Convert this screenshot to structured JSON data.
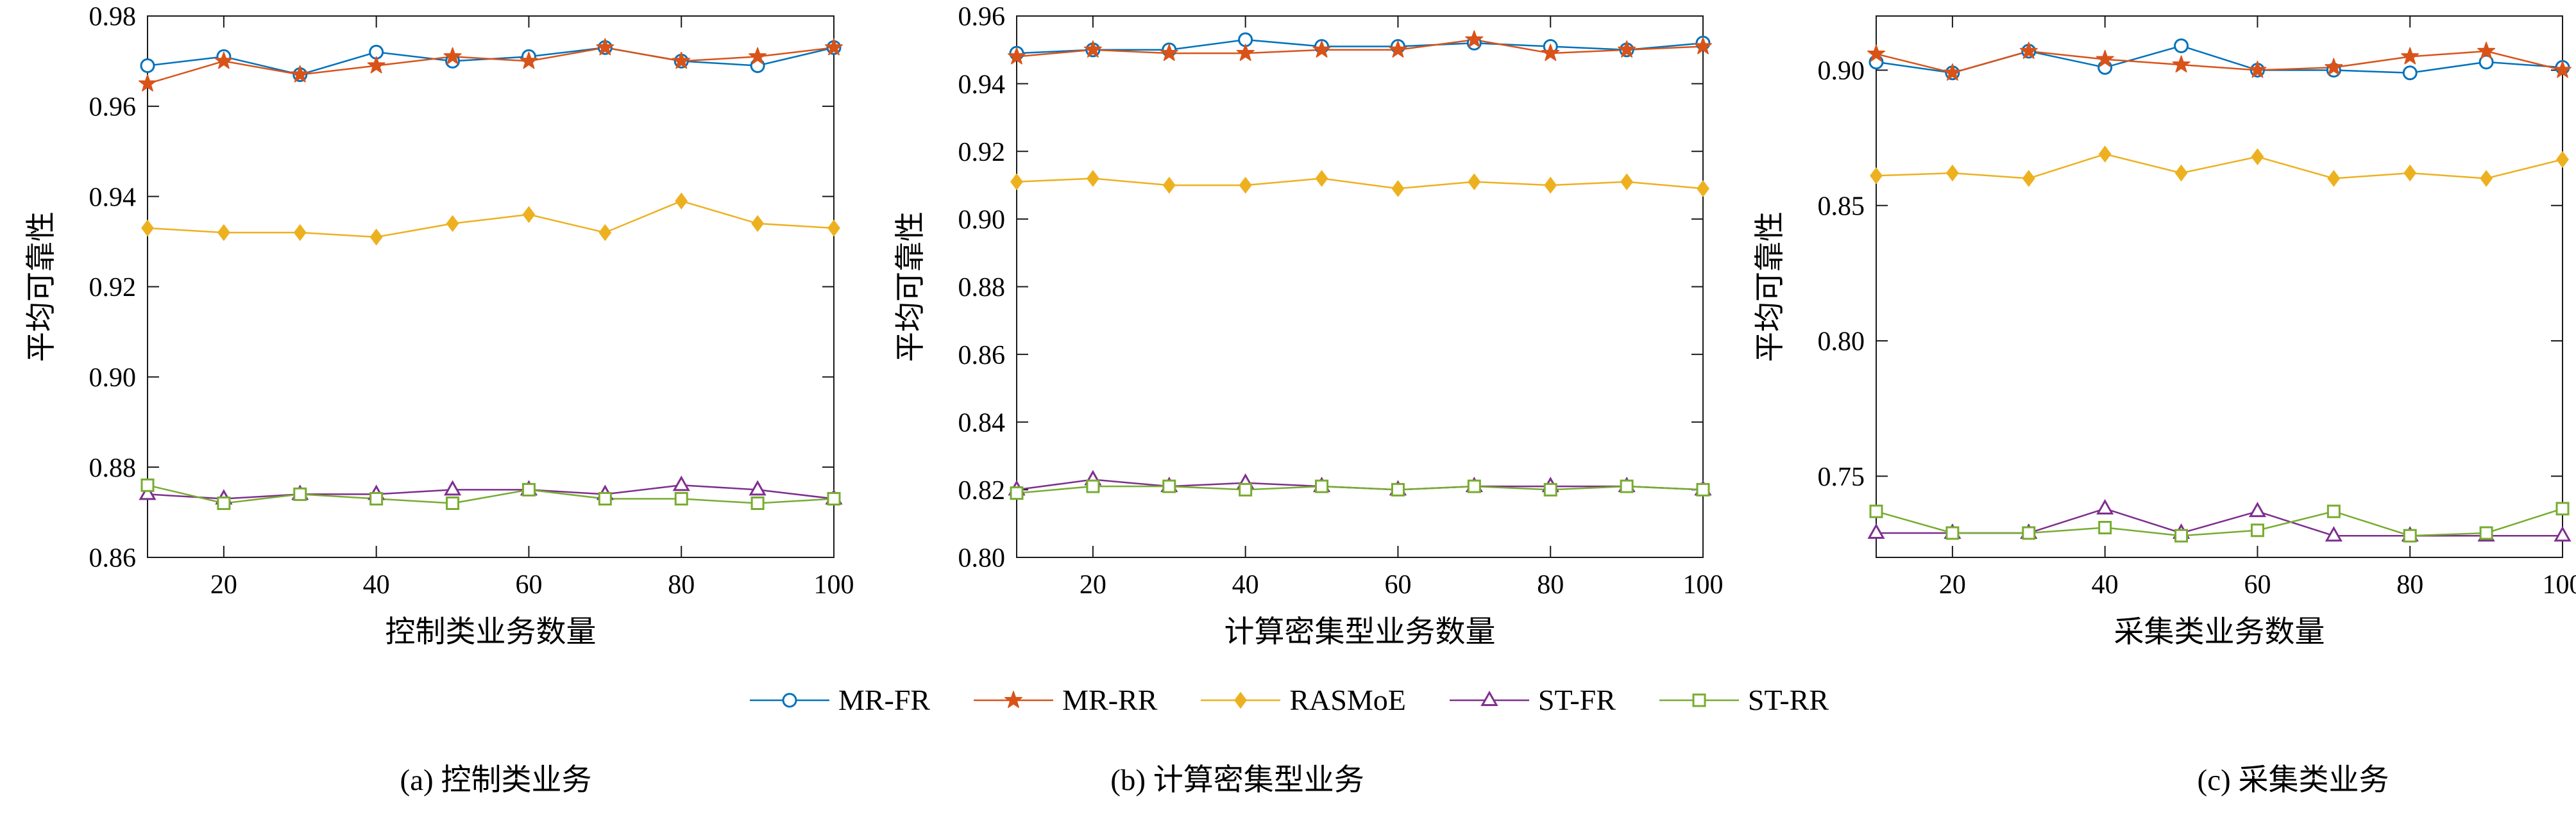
{
  "page": {
    "background": "#ffffff",
    "axis_color": "#1a1a1a"
  },
  "legend": {
    "items": [
      {
        "label": "MR-FR",
        "color": "#0072BD",
        "marker": "circle"
      },
      {
        "label": "MR-RR",
        "color": "#D95319",
        "marker": "star"
      },
      {
        "label": "RASMoE",
        "color": "#EDB120",
        "marker": "diamond"
      },
      {
        "label": "ST-FR",
        "color": "#7E2F8E",
        "marker": "triangle"
      },
      {
        "label": "ST-RR",
        "color": "#77AC30",
        "marker": "square"
      }
    ]
  },
  "chart_data": [
    {
      "type": "line",
      "title": "(a) 控制类业务",
      "xlabel": "控制类业务数量",
      "ylabel": "平均可靠性",
      "x": [
        10,
        20,
        30,
        40,
        50,
        60,
        70,
        80,
        90,
        100
      ],
      "xticks": [
        20,
        40,
        60,
        80,
        100
      ],
      "xlim": [
        10,
        100
      ],
      "ylim": [
        0.86,
        0.98
      ],
      "yticks": [
        0.86,
        0.88,
        0.9,
        0.92,
        0.94,
        0.96,
        0.98
      ],
      "grid": false,
      "series": [
        {
          "name": "MR-FR",
          "color": "#0072BD",
          "marker": "circle",
          "values": [
            0.969,
            0.971,
            0.967,
            0.972,
            0.97,
            0.971,
            0.973,
            0.97,
            0.969,
            0.973
          ]
        },
        {
          "name": "MR-RR",
          "color": "#D95319",
          "marker": "star",
          "values": [
            0.965,
            0.97,
            0.967,
            0.969,
            0.971,
            0.97,
            0.973,
            0.97,
            0.971,
            0.973
          ]
        },
        {
          "name": "RASMoE",
          "color": "#EDB120",
          "marker": "diamond",
          "values": [
            0.933,
            0.932,
            0.932,
            0.931,
            0.934,
            0.936,
            0.932,
            0.939,
            0.934,
            0.933
          ]
        },
        {
          "name": "ST-FR",
          "color": "#7E2F8E",
          "marker": "triangle",
          "values": [
            0.874,
            0.873,
            0.874,
            0.874,
            0.875,
            0.875,
            0.874,
            0.876,
            0.875,
            0.873
          ]
        },
        {
          "name": "ST-RR",
          "color": "#77AC30",
          "marker": "square",
          "values": [
            0.876,
            0.872,
            0.874,
            0.873,
            0.872,
            0.875,
            0.873,
            0.873,
            0.872,
            0.873
          ]
        }
      ]
    },
    {
      "type": "line",
      "title": "(b) 计算密集型业务",
      "xlabel": "计算密集型业务数量",
      "ylabel": "平均可靠性",
      "x": [
        10,
        20,
        30,
        40,
        50,
        60,
        70,
        80,
        90,
        100
      ],
      "xticks": [
        20,
        40,
        60,
        80,
        100
      ],
      "xlim": [
        10,
        100
      ],
      "ylim": [
        0.8,
        0.96
      ],
      "yticks": [
        0.8,
        0.82,
        0.84,
        0.86,
        0.88,
        0.9,
        0.92,
        0.94,
        0.96
      ],
      "grid": false,
      "series": [
        {
          "name": "MR-FR",
          "color": "#0072BD",
          "marker": "circle",
          "values": [
            0.949,
            0.95,
            0.95,
            0.953,
            0.951,
            0.951,
            0.952,
            0.951,
            0.95,
            0.952
          ]
        },
        {
          "name": "MR-RR",
          "color": "#D95319",
          "marker": "star",
          "values": [
            0.948,
            0.95,
            0.949,
            0.949,
            0.95,
            0.95,
            0.953,
            0.949,
            0.95,
            0.951
          ]
        },
        {
          "name": "RASMoE",
          "color": "#EDB120",
          "marker": "diamond",
          "values": [
            0.911,
            0.912,
            0.91,
            0.91,
            0.912,
            0.909,
            0.911,
            0.91,
            0.911,
            0.909
          ]
        },
        {
          "name": "ST-FR",
          "color": "#7E2F8E",
          "marker": "triangle",
          "values": [
            0.82,
            0.823,
            0.821,
            0.822,
            0.821,
            0.82,
            0.821,
            0.821,
            0.821,
            0.82
          ]
        },
        {
          "name": "ST-RR",
          "color": "#77AC30",
          "marker": "square",
          "values": [
            0.819,
            0.821,
            0.821,
            0.82,
            0.821,
            0.82,
            0.821,
            0.82,
            0.821,
            0.82
          ]
        }
      ]
    },
    {
      "type": "line",
      "title": "(c) 采集类业务",
      "xlabel": "采集类业务数量",
      "ylabel": "平均可靠性",
      "x": [
        10,
        20,
        30,
        40,
        50,
        60,
        70,
        80,
        90,
        100
      ],
      "xticks": [
        20,
        40,
        60,
        80,
        100
      ],
      "xlim": [
        10,
        100
      ],
      "ylim": [
        0.72,
        0.92
      ],
      "yticks": [
        0.75,
        0.8,
        0.85,
        0.9
      ],
      "grid": false,
      "series": [
        {
          "name": "MR-FR",
          "color": "#0072BD",
          "marker": "circle",
          "values": [
            0.903,
            0.899,
            0.907,
            0.901,
            0.909,
            0.9,
            0.9,
            0.899,
            0.903,
            0.901
          ]
        },
        {
          "name": "MR-RR",
          "color": "#D95319",
          "marker": "star",
          "values": [
            0.906,
            0.899,
            0.907,
            0.904,
            0.902,
            0.9,
            0.901,
            0.905,
            0.907,
            0.9
          ]
        },
        {
          "name": "RASMoE",
          "color": "#EDB120",
          "marker": "diamond",
          "values": [
            0.861,
            0.862,
            0.86,
            0.869,
            0.862,
            0.868,
            0.86,
            0.862,
            0.86,
            0.867
          ]
        },
        {
          "name": "ST-FR",
          "color": "#7E2F8E",
          "marker": "triangle",
          "values": [
            0.729,
            0.729,
            0.729,
            0.738,
            0.729,
            0.737,
            0.728,
            0.728,
            0.728,
            0.728
          ]
        },
        {
          "name": "ST-RR",
          "color": "#77AC30",
          "marker": "square",
          "values": [
            0.737,
            0.729,
            0.729,
            0.731,
            0.728,
            0.73,
            0.737,
            0.728,
            0.729,
            0.738
          ]
        }
      ]
    }
  ]
}
